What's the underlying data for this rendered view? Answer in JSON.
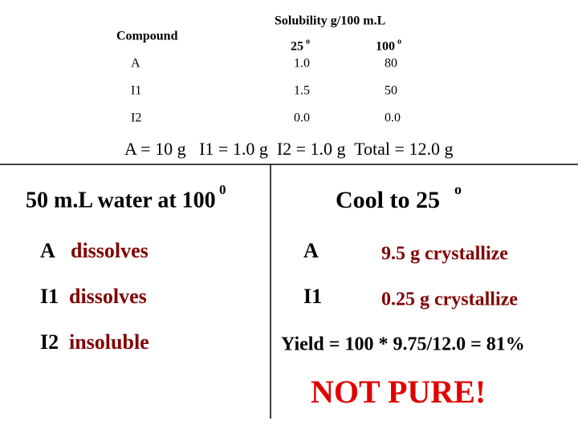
{
  "table": {
    "header": {
      "compound": "Compound",
      "solubility": "Solubility g/100 m.L",
      "temps": [
        {
          "text": "25",
          "sup": "o"
        },
        {
          "text": "100",
          "sup": "o"
        }
      ]
    },
    "rows": [
      [
        "A",
        "1.0",
        "80"
      ],
      [
        "I1",
        "1.5",
        "50"
      ],
      [
        "I2",
        "0.0",
        "0.0"
      ]
    ]
  },
  "summary": "A = 10 g   I1 = 1.0 g  I2 = 1.0 g  Total = 12.0 g",
  "left": {
    "heading": {
      "text": "50 m.L water at 100",
      "sup": "0"
    },
    "items": [
      {
        "compound": "A",
        "status": "dissolves"
      },
      {
        "compound": "I1",
        "status": "dissolves"
      },
      {
        "compound": "I2",
        "status": "insoluble"
      }
    ]
  },
  "right": {
    "heading": {
      "text": "Cool to 25",
      "sup": "o"
    },
    "items": [
      {
        "compound": "A",
        "result": "9.5 g crystallize"
      },
      {
        "compound": "I1",
        "result": "0.25 g crystallize"
      }
    ],
    "yield": "Yield = 100 * 9.75/12.0 = 81%",
    "verdict": "NOT PURE!"
  }
}
